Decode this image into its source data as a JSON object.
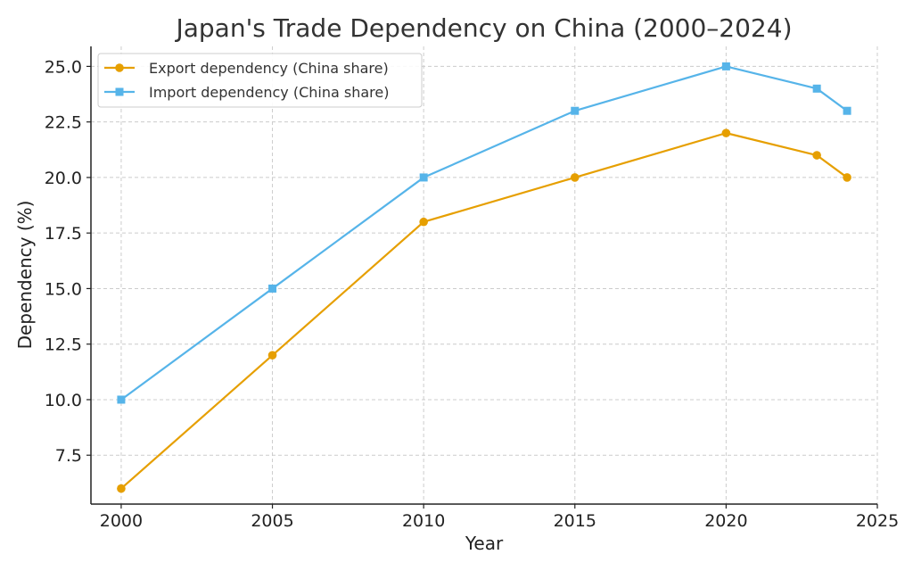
{
  "chart_data": {
    "type": "line",
    "title": "Japan's Trade Dependency on China (2000–2024)",
    "xlabel": "Year",
    "ylabel": "Dependency (%)",
    "x": [
      2000,
      2005,
      2010,
      2015,
      2020,
      2023,
      2024
    ],
    "xlim": [
      1999,
      2025
    ],
    "ylim": [
      5.3,
      25.9
    ],
    "xticks": [
      "2000",
      "2005",
      "2010",
      "2015",
      "2020",
      "2025"
    ],
    "yticks": [
      "7.5",
      "10.0",
      "12.5",
      "15.0",
      "17.5",
      "20.0",
      "22.5",
      "25.0"
    ],
    "grid": true,
    "legend_position": "top-left",
    "series": [
      {
        "name": "Export dependency (China share)",
        "values": [
          6,
          12,
          18,
          20,
          22,
          21,
          20
        ],
        "color": "#E69F00",
        "marker": "circle"
      },
      {
        "name": "Import dependency (China share)",
        "values": [
          10,
          15,
          20,
          23,
          25,
          24,
          23
        ],
        "color": "#56B4E9",
        "marker": "square"
      }
    ]
  }
}
